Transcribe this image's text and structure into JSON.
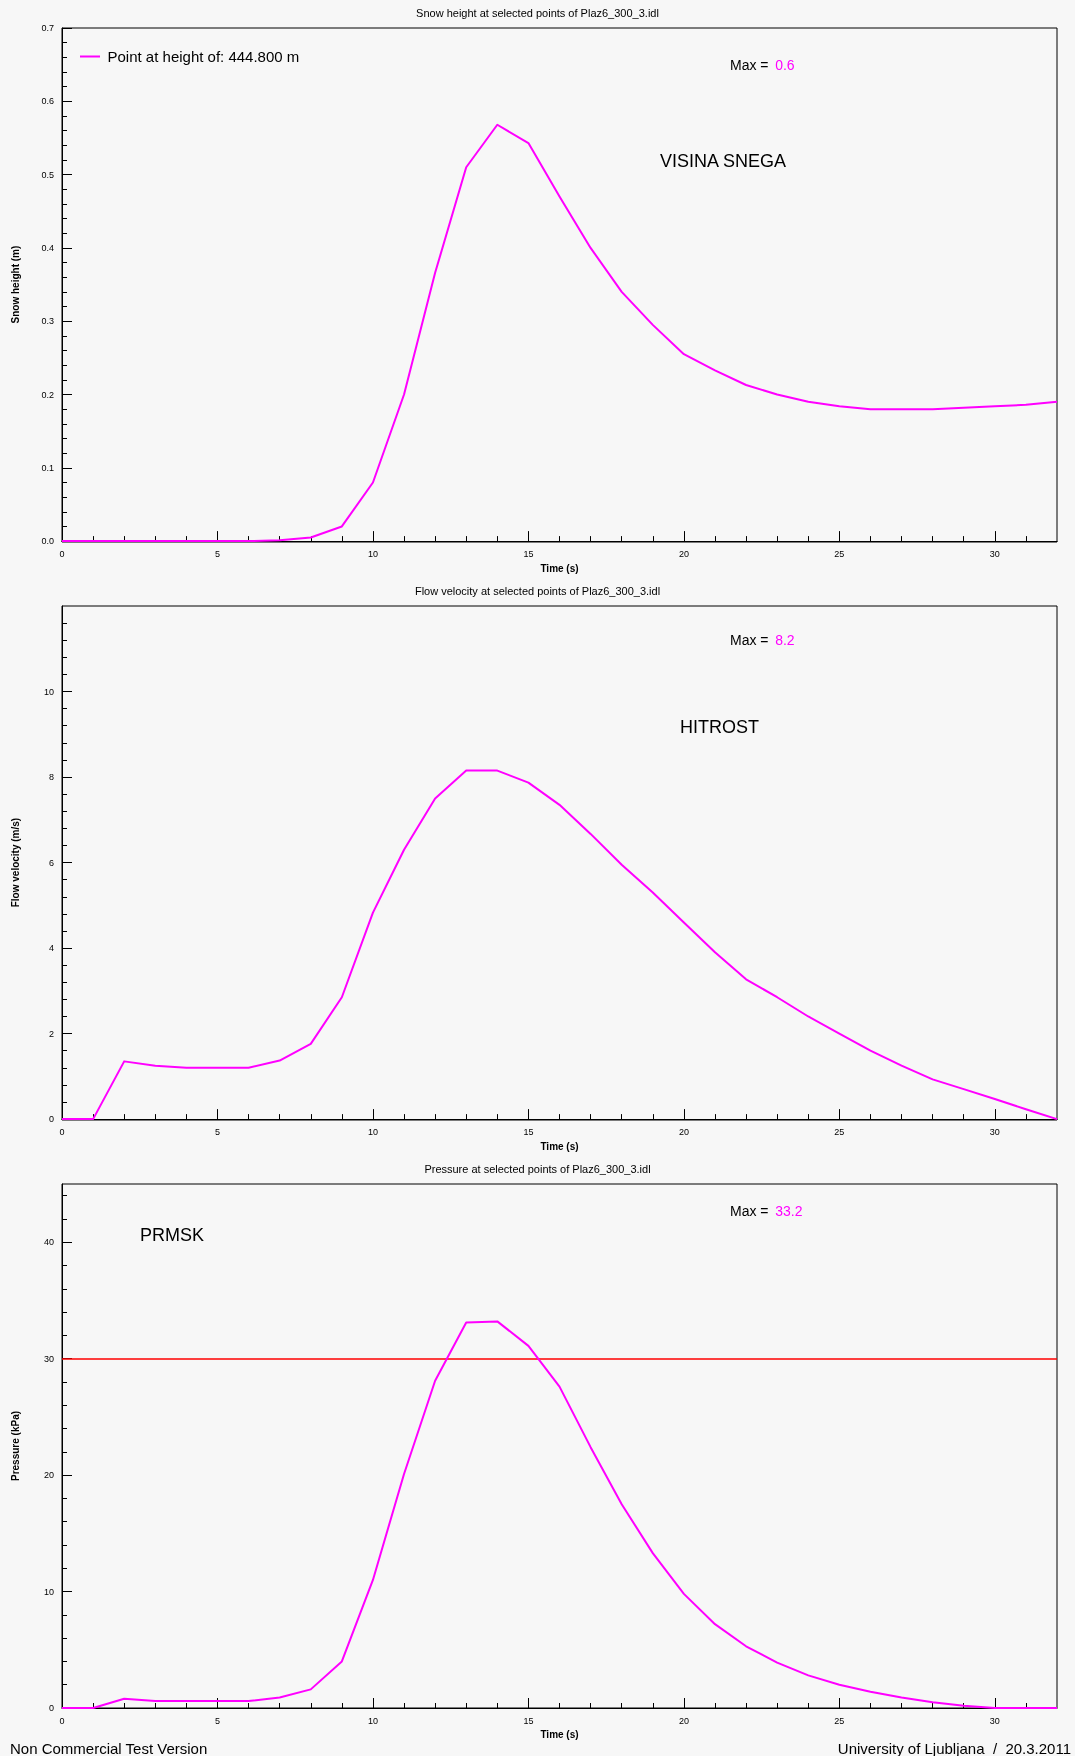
{
  "chart_data": [
    {
      "type": "line",
      "title": "Snow height at selected points of Plaz6_300_3.idl",
      "xlabel": "Time (s)",
      "ylabel": "Snow height (m)",
      "xlim": [
        0,
        32
      ],
      "xticks": [
        0,
        5,
        10,
        15,
        20,
        25,
        30
      ],
      "ylim": [
        0,
        0.7
      ],
      "yticks": [
        {
          "value": 0,
          "label": "0.0"
        },
        0.1,
        0.2,
        0.3,
        0.4,
        0.5,
        0.6,
        0.7
      ],
      "legend": "top left",
      "annotations": [
        "Max = 0.6",
        "VISINA SNEGA"
      ],
      "x": [
        0,
        1,
        2,
        3,
        4,
        5,
        6,
        7,
        8,
        9,
        10,
        11,
        12,
        13,
        14,
        15,
        16,
        17,
        18,
        19,
        20,
        21,
        22,
        23,
        24,
        25,
        26,
        27,
        28,
        29,
        30,
        31,
        32
      ],
      "series": [
        {
          "name": "Point at height of: 444.800 m",
          "color": "#ff00ff",
          "values": [
            0,
            0,
            0,
            0,
            0,
            0,
            0,
            0.001,
            0.005,
            0.02,
            0.08,
            0.2,
            0.366,
            0.51,
            0.568,
            0.543,
            0.47,
            0.4,
            0.34,
            0.295,
            0.255,
            0.233,
            0.213,
            0.2,
            0.19,
            0.184,
            0.18,
            0.18,
            0.18,
            0.182,
            0.184,
            0.186,
            0.19
          ]
        }
      ]
    },
    {
      "type": "line",
      "title": "Flow velocity at selected points of Plaz6_300_3.idl",
      "xlabel": "Time (s)",
      "ylabel": "Flow velocity (m/s)",
      "xlim": [
        0,
        32
      ],
      "xticks": [
        0,
        5,
        10,
        15,
        20,
        25,
        30
      ],
      "ylim": [
        0,
        12
      ],
      "yticks": [
        0,
        2,
        4,
        6,
        8,
        10
      ],
      "annotations": [
        "Max = 8.2",
        "HITROST"
      ],
      "x": [
        0,
        1,
        2,
        3,
        4,
        5,
        6,
        7,
        8,
        9,
        10,
        11,
        12,
        13,
        14,
        15,
        16,
        17,
        18,
        19,
        20,
        21,
        22,
        23,
        24,
        25,
        26,
        27,
        28,
        29,
        30,
        31,
        32
      ],
      "series": [
        {
          "color": "#ff00ff",
          "values": [
            0,
            0,
            1.35,
            1.25,
            1.2,
            1.2,
            1.2,
            1.37,
            1.76,
            2.85,
            4.83,
            6.3,
            7.5,
            8.15,
            8.15,
            7.87,
            7.35,
            6.67,
            5.95,
            5.3,
            4.6,
            3.9,
            3.27,
            2.85,
            2.4,
            2.0,
            1.6,
            1.25,
            0.93,
            0.7,
            0.47,
            0.23,
            0
          ]
        }
      ]
    },
    {
      "type": "line",
      "title": "Pressure at selected points of Plaz6_300_3.idl",
      "xlabel": "Time (s)",
      "ylabel": "Pressure (kPa)",
      "xlim": [
        0,
        32
      ],
      "xticks": [
        0,
        5,
        10,
        15,
        20,
        25,
        30
      ],
      "ylim": [
        0,
        45
      ],
      "yticks": [
        0,
        10,
        20,
        30,
        40
      ],
      "annotations": [
        "Max = 33.2",
        "PRMSK",
        "Non Commercial Test Version",
        "University of Ljubljana  /  20.3.2011"
      ],
      "ref_lines": [
        {
          "axis": "y",
          "value": 30,
          "color": "#ff0000"
        }
      ],
      "x": [
        0,
        1,
        2,
        3,
        4,
        5,
        6,
        7,
        8,
        9,
        10,
        11,
        12,
        13,
        14,
        15,
        16,
        17,
        18,
        19,
        20,
        21,
        22,
        23,
        24,
        25,
        26,
        27,
        28,
        29,
        30,
        31,
        32
      ],
      "series": [
        {
          "color": "#ff00ff",
          "values": [
            0,
            0,
            0.8,
            0.6,
            0.6,
            0.6,
            0.6,
            0.9,
            1.6,
            4,
            11,
            20.1,
            28.1,
            33.1,
            33.2,
            31.1,
            27.6,
            22.4,
            17.5,
            13.3,
            9.8,
            7.2,
            5.3,
            3.9,
            2.8,
            2.0,
            1.4,
            0.9,
            0.5,
            0.2,
            0,
            0,
            0
          ]
        }
      ]
    }
  ]
}
